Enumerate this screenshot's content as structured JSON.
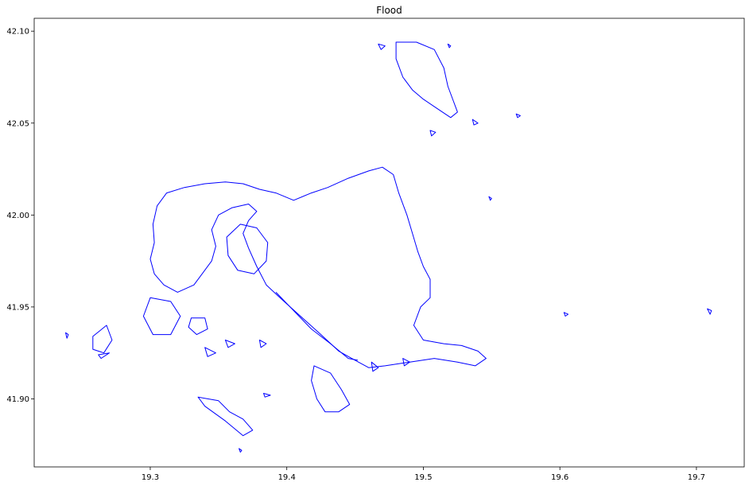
{
  "chart_data": {
    "type": "map",
    "title": "Flood",
    "xlim": [
      19.215,
      19.735
    ],
    "ylim": [
      41.863,
      42.107
    ],
    "x_ticks": [
      19.3,
      19.4,
      19.5,
      19.6,
      19.7
    ],
    "x_tick_labels": [
      "19.3",
      "19.4",
      "19.5",
      "19.6",
      "19.7"
    ],
    "y_ticks": [
      41.9,
      41.95,
      42.0,
      42.05,
      42.1
    ],
    "y_tick_labels": [
      "41.90",
      "41.95",
      "42.00",
      "42.05",
      "42.10"
    ],
    "grid": false,
    "line_color": "#0000ff",
    "shapes": [
      {
        "name": "main-flood-area",
        "closed": true,
        "coords": [
          [
            19.38,
            42.014
          ],
          [
            19.392,
            42.012
          ],
          [
            19.405,
            42.008
          ],
          [
            19.418,
            42.012
          ],
          [
            19.43,
            42.015
          ],
          [
            19.445,
            42.02
          ],
          [
            19.46,
            42.024
          ],
          [
            19.47,
            42.026
          ],
          [
            19.478,
            42.022
          ],
          [
            19.482,
            42.012
          ],
          [
            19.488,
            42.0
          ],
          [
            19.492,
            41.99
          ],
          [
            19.496,
            41.98
          ],
          [
            19.5,
            41.972
          ],
          [
            19.505,
            41.965
          ],
          [
            19.505,
            41.955
          ],
          [
            19.498,
            41.95
          ],
          [
            19.493,
            41.94
          ],
          [
            19.5,
            41.932
          ],
          [
            19.515,
            41.93
          ],
          [
            19.528,
            41.929
          ],
          [
            19.54,
            41.926
          ],
          [
            19.546,
            41.922
          ],
          [
            19.538,
            41.918
          ],
          [
            19.525,
            41.92
          ],
          [
            19.508,
            41.922
          ],
          [
            19.49,
            41.92
          ],
          [
            19.472,
            41.918
          ],
          [
            19.46,
            41.917
          ],
          [
            19.45,
            41.921
          ],
          [
            19.438,
            41.926
          ],
          [
            19.425,
            41.935
          ],
          [
            19.41,
            41.945
          ],
          [
            19.395,
            41.955
          ],
          [
            19.385,
            41.962
          ],
          [
            19.378,
            41.972
          ],
          [
            19.372,
            41.982
          ],
          [
            19.368,
            41.99
          ],
          [
            19.372,
            41.997
          ],
          [
            19.378,
            42.002
          ],
          [
            19.372,
            42.006
          ],
          [
            19.36,
            42.004
          ],
          [
            19.35,
            42.0
          ],
          [
            19.345,
            41.992
          ],
          [
            19.348,
            41.983
          ],
          [
            19.345,
            41.975
          ],
          [
            19.338,
            41.968
          ],
          [
            19.332,
            41.962
          ],
          [
            19.32,
            41.958
          ],
          [
            19.31,
            41.962
          ],
          [
            19.303,
            41.968
          ],
          [
            19.3,
            41.976
          ],
          [
            19.303,
            41.985
          ],
          [
            19.302,
            41.995
          ],
          [
            19.305,
            42.005
          ],
          [
            19.312,
            42.012
          ],
          [
            19.325,
            42.015
          ],
          [
            19.34,
            42.017
          ],
          [
            19.355,
            42.018
          ],
          [
            19.368,
            42.017
          ],
          [
            19.38,
            42.014
          ]
        ]
      },
      {
        "name": "inner-hole-ring",
        "closed": true,
        "coords": [
          [
            19.366,
            41.995
          ],
          [
            19.378,
            41.993
          ],
          [
            19.386,
            41.985
          ],
          [
            19.385,
            41.975
          ],
          [
            19.376,
            41.968
          ],
          [
            19.364,
            41.97
          ],
          [
            19.357,
            41.978
          ],
          [
            19.356,
            41.988
          ],
          [
            19.366,
            41.995
          ]
        ]
      },
      {
        "name": "north-patch",
        "closed": true,
        "coords": [
          [
            19.48,
            42.094
          ],
          [
            19.495,
            42.094
          ],
          [
            19.508,
            42.09
          ],
          [
            19.515,
            42.08
          ],
          [
            19.518,
            42.07
          ],
          [
            19.522,
            42.062
          ],
          [
            19.525,
            42.056
          ],
          [
            19.52,
            42.053
          ],
          [
            19.51,
            42.058
          ],
          [
            19.5,
            42.063
          ],
          [
            19.492,
            42.068
          ],
          [
            19.485,
            42.075
          ],
          [
            19.48,
            42.085
          ],
          [
            19.48,
            42.094
          ]
        ]
      },
      {
        "name": "south-patch",
        "closed": true,
        "coords": [
          [
            19.42,
            41.918
          ],
          [
            19.432,
            41.914
          ],
          [
            19.44,
            41.905
          ],
          [
            19.446,
            41.897
          ],
          [
            19.438,
            41.893
          ],
          [
            19.428,
            41.893
          ],
          [
            19.422,
            41.9
          ],
          [
            19.418,
            41.91
          ],
          [
            19.42,
            41.918
          ]
        ]
      },
      {
        "name": "southwest-patch",
        "closed": true,
        "coords": [
          [
            19.3,
            41.955
          ],
          [
            19.315,
            41.953
          ],
          [
            19.322,
            41.945
          ],
          [
            19.315,
            41.935
          ],
          [
            19.302,
            41.935
          ],
          [
            19.295,
            41.945
          ],
          [
            19.3,
            41.955
          ]
        ]
      },
      {
        "name": "west-small-patch",
        "closed": true,
        "coords": [
          [
            19.33,
            41.944
          ],
          [
            19.34,
            41.944
          ],
          [
            19.342,
            41.938
          ],
          [
            19.334,
            41.935
          ],
          [
            19.328,
            41.939
          ],
          [
            19.33,
            41.944
          ]
        ]
      },
      {
        "name": "far-west-patch",
        "closed": true,
        "coords": [
          [
            19.258,
            41.934
          ],
          [
            19.268,
            41.94
          ],
          [
            19.272,
            41.932
          ],
          [
            19.266,
            41.925
          ],
          [
            19.258,
            41.927
          ],
          [
            19.258,
            41.934
          ]
        ]
      },
      {
        "name": "lower-southwest-patch",
        "closed": true,
        "coords": [
          [
            19.335,
            41.901
          ],
          [
            19.35,
            41.899
          ],
          [
            19.358,
            41.893
          ],
          [
            19.368,
            41.889
          ],
          [
            19.375,
            41.883
          ],
          [
            19.368,
            41.88
          ],
          [
            19.355,
            41.888
          ],
          [
            19.34,
            41.896
          ],
          [
            19.335,
            41.901
          ]
        ]
      },
      {
        "name": "coast-line",
        "closed": false,
        "coords": [
          [
            19.392,
            41.958
          ],
          [
            19.405,
            41.948
          ],
          [
            19.418,
            41.938
          ],
          [
            19.432,
            41.93
          ],
          [
            19.445,
            41.922
          ],
          [
            19.452,
            41.921
          ]
        ]
      },
      {
        "name": "east-islet-1",
        "closed": true,
        "coords": [
          [
            19.708,
            41.949
          ],
          [
            19.711,
            41.948
          ],
          [
            19.71,
            41.946
          ],
          [
            19.708,
            41.949
          ]
        ]
      },
      {
        "name": "east-islet-2",
        "closed": true,
        "coords": [
          [
            19.548,
            42.01
          ],
          [
            19.55,
            42.009
          ],
          [
            19.549,
            42.008
          ],
          [
            19.548,
            42.01
          ]
        ]
      },
      {
        "name": "east-islet-3",
        "closed": true,
        "coords": [
          [
            19.536,
            42.052
          ],
          [
            19.54,
            42.05
          ],
          [
            19.537,
            42.049
          ],
          [
            19.536,
            42.052
          ]
        ]
      },
      {
        "name": "east-islet-4",
        "closed": true,
        "coords": [
          [
            19.568,
            42.055
          ],
          [
            19.571,
            42.054
          ],
          [
            19.569,
            42.053
          ],
          [
            19.568,
            42.055
          ]
        ]
      },
      {
        "name": "east-islet-5",
        "closed": true,
        "coords": [
          [
            19.603,
            41.947
          ],
          [
            19.606,
            41.946
          ],
          [
            19.604,
            41.945
          ],
          [
            19.603,
            41.947
          ]
        ]
      },
      {
        "name": "north-islet-1",
        "closed": true,
        "coords": [
          [
            19.467,
            42.093
          ],
          [
            19.472,
            42.092
          ],
          [
            19.469,
            42.09
          ],
          [
            19.467,
            42.093
          ]
        ]
      },
      {
        "name": "north-islet-2",
        "closed": true,
        "coords": [
          [
            19.518,
            42.093
          ],
          [
            19.52,
            42.092
          ],
          [
            19.519,
            42.091
          ],
          [
            19.518,
            42.093
          ]
        ]
      },
      {
        "name": "north-islet-3",
        "closed": true,
        "coords": [
          [
            19.505,
            42.046
          ],
          [
            19.509,
            42.045
          ],
          [
            19.506,
            42.043
          ],
          [
            19.505,
            42.046
          ]
        ]
      },
      {
        "name": "west-islet-1",
        "closed": true,
        "coords": [
          [
            19.238,
            41.936
          ],
          [
            19.24,
            41.935
          ],
          [
            19.239,
            41.933
          ],
          [
            19.238,
            41.936
          ]
        ]
      },
      {
        "name": "southwest-islet-1",
        "closed": true,
        "coords": [
          [
            19.262,
            41.924
          ],
          [
            19.27,
            41.925
          ],
          [
            19.264,
            41.922
          ],
          [
            19.262,
            41.924
          ]
        ]
      },
      {
        "name": "south-islet-1",
        "closed": true,
        "coords": [
          [
            19.365,
            41.873
          ],
          [
            19.367,
            41.872
          ],
          [
            19.366,
            41.871
          ],
          [
            19.365,
            41.873
          ]
        ]
      },
      {
        "name": "south-islet-2",
        "closed": true,
        "coords": [
          [
            19.383,
            41.903
          ],
          [
            19.388,
            41.902
          ],
          [
            19.384,
            41.901
          ],
          [
            19.383,
            41.903
          ]
        ]
      },
      {
        "name": "south-islet-3",
        "closed": true,
        "coords": [
          [
            19.34,
            41.928
          ],
          [
            19.348,
            41.925
          ],
          [
            19.342,
            41.923
          ],
          [
            19.34,
            41.928
          ]
        ]
      },
      {
        "name": "south-islet-4",
        "closed": true,
        "coords": [
          [
            19.355,
            41.932
          ],
          [
            19.362,
            41.93
          ],
          [
            19.357,
            41.928
          ],
          [
            19.355,
            41.932
          ]
        ]
      },
      {
        "name": "south-islet-5",
        "closed": true,
        "coords": [
          [
            19.38,
            41.932
          ],
          [
            19.385,
            41.93
          ],
          [
            19.381,
            41.928
          ],
          [
            19.38,
            41.932
          ]
        ]
      },
      {
        "name": "south-islet-6",
        "closed": true,
        "coords": [
          [
            19.462,
            41.92
          ],
          [
            19.467,
            41.917
          ],
          [
            19.463,
            41.915
          ],
          [
            19.462,
            41.92
          ]
        ]
      },
      {
        "name": "south-islet-7",
        "closed": true,
        "coords": [
          [
            19.485,
            41.922
          ],
          [
            19.49,
            41.92
          ],
          [
            19.486,
            41.918
          ],
          [
            19.485,
            41.922
          ]
        ]
      }
    ]
  }
}
